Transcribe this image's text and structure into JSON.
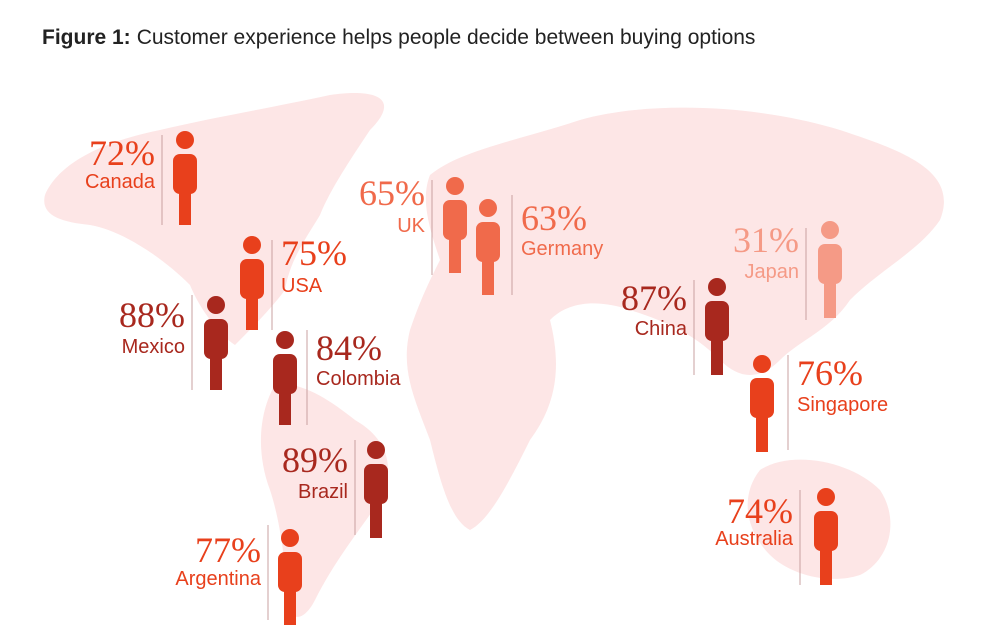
{
  "chart_data": {
    "type": "pictogram",
    "title_label": "Figure 1:",
    "title": "Customer experience helps people decide between buying options",
    "categories": [
      "Canada",
      "USA",
      "Mexico",
      "Colombia",
      "Brazil",
      "Argentina",
      "UK",
      "Germany",
      "Japan",
      "China",
      "Singapore",
      "Australia"
    ],
    "values": [
      72,
      75,
      88,
      84,
      89,
      77,
      65,
      63,
      31,
      87,
      76,
      74
    ],
    "value_labels": [
      "72%",
      "75%",
      "88%",
      "84%",
      "89%",
      "77%",
      "65%",
      "63%",
      "31%",
      "87%",
      "76%",
      "74%"
    ],
    "colors": [
      "#e8401c",
      "#e8401c",
      "#a8281e",
      "#a8281e",
      "#a8281e",
      "#e8401c",
      "#f06a4b",
      "#f06a4b",
      "#f59a86",
      "#a8281e",
      "#e8401c",
      "#e8401c"
    ]
  }
}
